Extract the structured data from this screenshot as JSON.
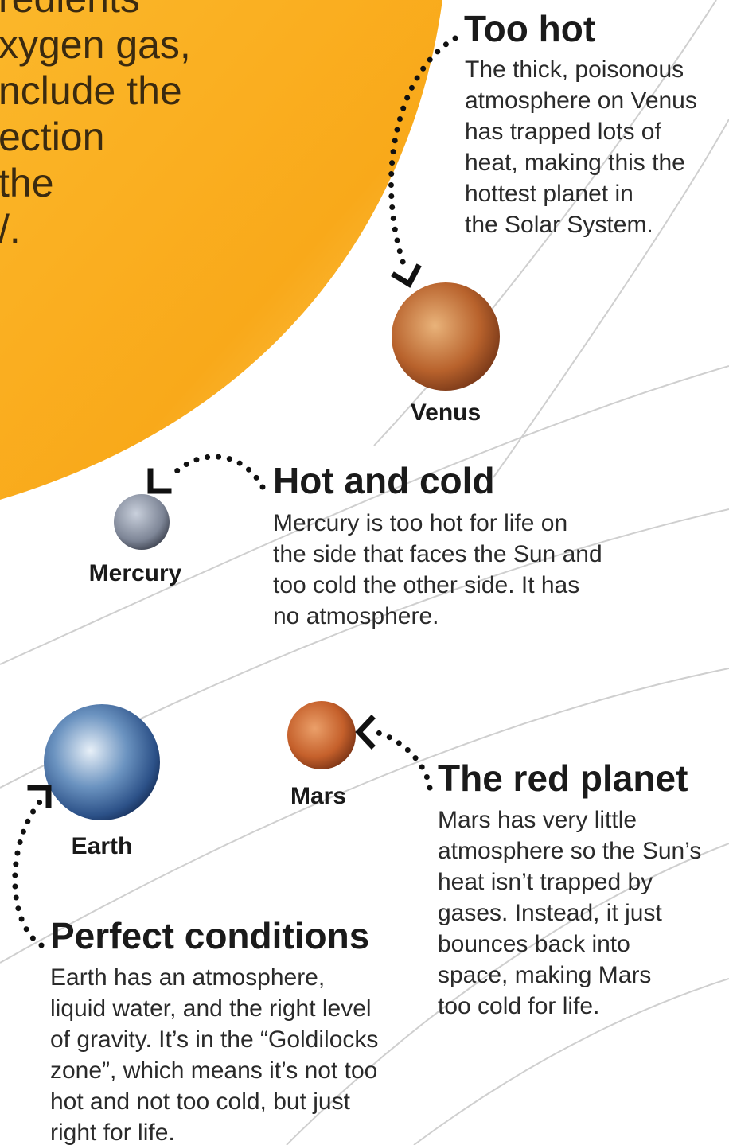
{
  "intro": {
    "lines": [
      "redients",
      "xygen gas,",
      "nclude the",
      "ection",
      "the",
      "/."
    ]
  },
  "venus": {
    "heading": "Too hot",
    "label": "Venus",
    "lines": [
      "The thick, poisonous",
      "atmosphere on Venus",
      "has trapped lots of",
      "heat, making this the",
      "hottest planet in",
      "the Solar System."
    ]
  },
  "mercury": {
    "heading": "Hot and cold",
    "label": "Mercury",
    "lines": [
      "Mercury is too hot for life on",
      "the side that faces the Sun and",
      "too cold the other side. It has",
      "no atmosphere."
    ]
  },
  "mars": {
    "heading": "The red planet",
    "label": "Mars",
    "lines": [
      "Mars has very little",
      "atmosphere so the Sun’s",
      "heat isn’t trapped by",
      "gases. Instead, it just",
      "bounces back into",
      "space, making Mars",
      "too cold for life."
    ]
  },
  "earth": {
    "heading": "Perfect conditions",
    "label": "Earth",
    "lines": [
      "Earth has an atmosphere,",
      "liquid water, and the right level",
      "of gravity. It’s in the “Goldilocks",
      "zone”, which means it’s not too",
      "hot and not too cold, but just",
      "right for life."
    ]
  }
}
